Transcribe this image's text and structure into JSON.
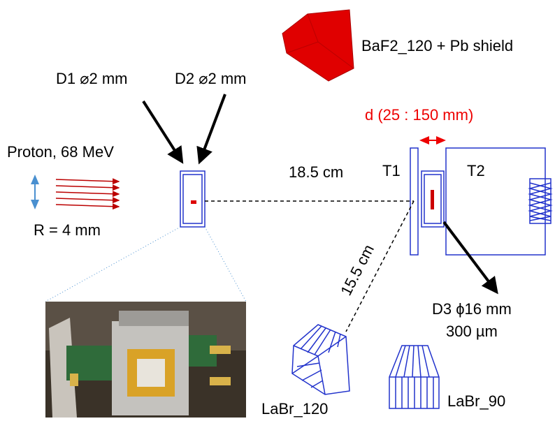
{
  "labels": {
    "baf2": "BaF2_120 + Pb shield",
    "d1": "D1 ⌀2 mm",
    "d2": "D2 ⌀2 mm",
    "distance_range": "d (25 : 150 mm)",
    "proton": "Proton, 68 MeV",
    "dist_t1": "18.5 cm",
    "t1": "T1",
    "t2": "T2",
    "radius": "R = 4 mm",
    "dist_labr": "15.5 cm",
    "d3_size": "D3 ϕ16 mm",
    "d3_thickness": "300 µm",
    "labr120": "LaBr_120",
    "labr90": "LaBr_90"
  }
}
